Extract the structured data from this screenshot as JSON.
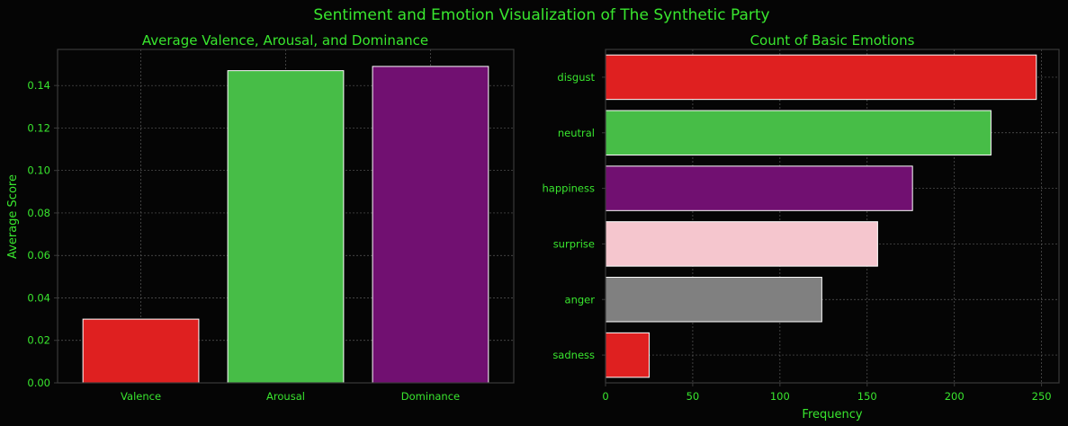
{
  "suptitle": "Sentiment and Emotion Visualization of The Synthetic Party",
  "colors": {
    "background": "#050505",
    "text": "#39e62e",
    "spine": "#3a3a3a",
    "grid": "#5a5a5a",
    "bar_edge": "#ffffff"
  },
  "chart_data": [
    {
      "type": "bar",
      "title": "Average Valence, Arousal, and Dominance",
      "xlabel": "",
      "ylabel": "Average Score",
      "categories": [
        "Valence",
        "Arousal",
        "Dominance"
      ],
      "values": [
        0.03,
        0.147,
        0.149
      ],
      "colors": [
        "#df2020",
        "#47bd47",
        "#711071"
      ],
      "ylim": [
        0,
        0.157
      ],
      "yticks": [
        0.0,
        0.02,
        0.04,
        0.06,
        0.08,
        0.1,
        0.12,
        0.14
      ],
      "ytick_labels": [
        "0.00",
        "0.02",
        "0.04",
        "0.06",
        "0.08",
        "0.10",
        "0.12",
        "0.14"
      ],
      "grid": true
    },
    {
      "type": "bar",
      "orientation": "horizontal",
      "title": "Count of Basic Emotions",
      "xlabel": "Frequency",
      "ylabel": "",
      "categories": [
        "disgust",
        "neutral",
        "happiness",
        "surprise",
        "anger",
        "sadness"
      ],
      "values": [
        247,
        221,
        176,
        156,
        124,
        25
      ],
      "colors": [
        "#df2020",
        "#47bd47",
        "#711071",
        "#f5c6ce",
        "#808080",
        "#df2020"
      ],
      "xlim": [
        0,
        260
      ],
      "xticks": [
        0,
        50,
        100,
        150,
        200,
        250
      ],
      "xtick_labels": [
        "0",
        "50",
        "100",
        "150",
        "200",
        "250"
      ],
      "grid": true
    }
  ]
}
